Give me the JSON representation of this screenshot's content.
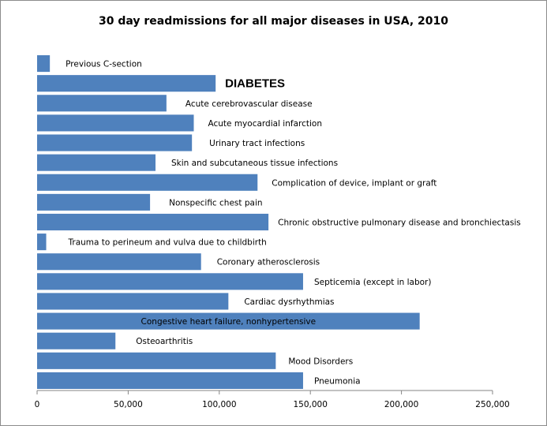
{
  "chart_data": {
    "type": "bar",
    "orientation": "horizontal",
    "title": "30 day readmissions for all major diseases in USA, 2010",
    "xlabel": "",
    "ylabel": "",
    "xlim": [
      0,
      250000
    ],
    "x_ticks": [
      0,
      50000,
      100000,
      150000,
      200000,
      250000
    ],
    "x_tick_labels": [
      "0",
      "50,000",
      "100,000",
      "150,000",
      "200,000",
      "250,000"
    ],
    "grid": false,
    "legend": "none",
    "bar_color": "#4f81bd",
    "categories": [
      "Previous C-section",
      "DIABETES",
      "Acute cerebrovascular disease",
      "Acute myocardial infarction",
      "Urinary tract infections",
      "Skin and subcutaneous tissue infections",
      "Complication of device, implant or graft",
      "Nonspecific chest pain",
      "Chronic obstructive pulmonary disease and bronchiectasis",
      "Trauma to perineum and vulva due to childbirth",
      "Coronary atherosclerosis",
      "Septicemia (except in labor)",
      "Cardiac dysrhythmias",
      "Congestive heart failure, nonhypertensive",
      "Osteoarthritis",
      "Mood Disorders",
      "Pneumonia"
    ],
    "values": [
      7000,
      98000,
      71000,
      86000,
      85000,
      65000,
      121000,
      62000,
      127000,
      5000,
      90000,
      146000,
      105000,
      210000,
      43000,
      131000,
      146000
    ],
    "emphasized_category": "DIABETES"
  }
}
